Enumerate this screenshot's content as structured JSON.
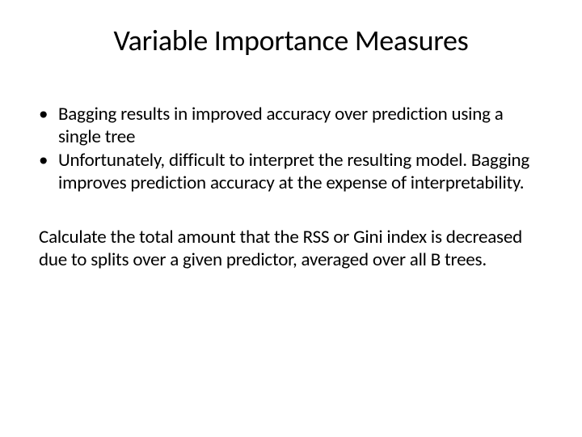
{
  "slide": {
    "title": "Variable Importance Measures",
    "bullet_marker": "•",
    "bullets": [
      "Bagging results in improved accuracy over prediction using a single tree",
      "Unfortunately, difficult to interpret the resulting model. Bagging improves prediction accuracy at the expense of interpretability."
    ],
    "paragraph": "Calculate the total amount that the RSS or Gini index is decreased due to splits over a given predictor, averaged over all B trees."
  },
  "style": {
    "background_color": "#ffffff",
    "text_color": "#000000",
    "title_fontsize": 36,
    "body_fontsize": 23,
    "font_family": "Calibri"
  }
}
